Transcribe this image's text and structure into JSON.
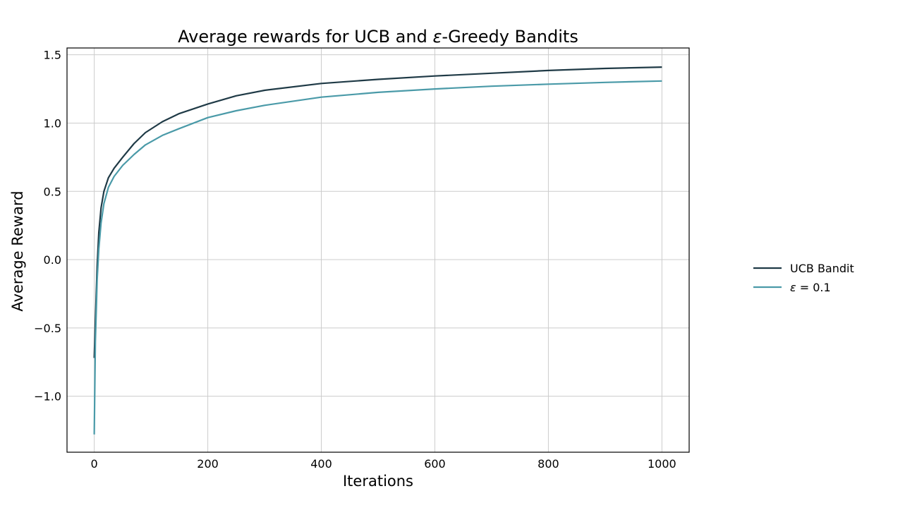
{
  "chart_data": {
    "type": "line",
    "title_pre": "Average rewards for UCB and ",
    "title_eps": "ε",
    "title_post": "-Greedy Bandits",
    "xlabel": "Iterations",
    "ylabel": "Average Reward",
    "xlim": [
      -48,
      1048
    ],
    "ylim": [
      -1.41,
      1.55
    ],
    "xticks": [
      0,
      200,
      400,
      600,
      800,
      1000
    ],
    "xtick_labels": [
      "0",
      "200",
      "400",
      "600",
      "800",
      "1000"
    ],
    "yticks": [
      -1.0,
      -0.5,
      0.0,
      0.5,
      1.0,
      1.5
    ],
    "ytick_labels": [
      "−1.0",
      "−0.5",
      "0.0",
      "0.5",
      "1.0",
      "1.5"
    ],
    "grid": true,
    "legend_position": "right, outside plot",
    "series": [
      {
        "name": "UCB Bandit",
        "color": "#1f3a46",
        "x": [
          0,
          2,
          5,
          8,
          12,
          17,
          25,
          35,
          50,
          70,
          90,
          120,
          150,
          200,
          250,
          300,
          400,
          500,
          600,
          700,
          800,
          900,
          1000
        ],
        "y": [
          -0.72,
          -0.45,
          -0.05,
          0.2,
          0.38,
          0.5,
          0.6,
          0.67,
          0.75,
          0.85,
          0.93,
          1.01,
          1.07,
          1.14,
          1.2,
          1.24,
          1.29,
          1.32,
          1.345,
          1.365,
          1.385,
          1.4,
          1.41
        ]
      },
      {
        "name_eps": "ε",
        "name_post": " = 0.1",
        "color": "#4a9aa8",
        "x": [
          0,
          2,
          5,
          8,
          12,
          17,
          25,
          35,
          50,
          70,
          90,
          120,
          150,
          200,
          250,
          300,
          400,
          500,
          600,
          700,
          800,
          900,
          1000
        ],
        "y": [
          -1.28,
          -0.6,
          -0.15,
          0.08,
          0.27,
          0.41,
          0.53,
          0.61,
          0.69,
          0.77,
          0.84,
          0.91,
          0.96,
          1.04,
          1.09,
          1.13,
          1.19,
          1.225,
          1.25,
          1.27,
          1.285,
          1.298,
          1.308
        ]
      }
    ]
  }
}
